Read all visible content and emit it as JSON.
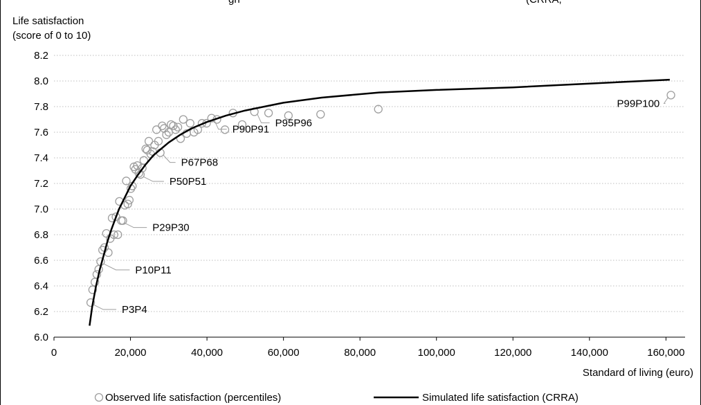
{
  "chart_data": {
    "type": "scatter",
    "title": "",
    "top_caption": "gh",
    "top_caption_right": "(CRRA,",
    "ylabel": "Life satisfaction",
    "ylabel_sub": "(score of 0 to 10)",
    "xlabel": "Standard of living (euro)",
    "xlim": [
      0,
      165000
    ],
    "ylim": [
      6.0,
      8.2
    ],
    "x_ticks": [
      0,
      20000,
      40000,
      60000,
      80000,
      100000,
      120000,
      140000,
      160000
    ],
    "x_tick_labels": [
      "0",
      "20,000",
      "40,000",
      "60,000",
      "80,000",
      "100,000",
      "120,000",
      "140,000",
      "160,000"
    ],
    "y_ticks": [
      6.0,
      6.2,
      6.4,
      6.6,
      6.8,
      7.0,
      7.2,
      7.4,
      7.6,
      7.8,
      8.0,
      8.2
    ],
    "y_tick_labels": [
      "6.0",
      "6.2",
      "6.4",
      "6.6",
      "6.8",
      "7.0",
      "7.2",
      "7.4",
      "7.6",
      "7.8",
      "8.0",
      "8.2"
    ],
    "grid": "horizontal dotted",
    "legend_position": "bottom",
    "series": [
      {
        "name": "Observed life satisfaction (percentiles)",
        "marker": "open-circle",
        "color": "#9e9e9e",
        "points": [
          [
            9600,
            6.27
          ],
          [
            10100,
            6.37
          ],
          [
            10700,
            6.43
          ],
          [
            11200,
            6.49
          ],
          [
            11700,
            6.53
          ],
          [
            12200,
            6.59
          ],
          [
            12700,
            6.68
          ],
          [
            13200,
            6.7
          ],
          [
            13700,
            6.81
          ],
          [
            14200,
            6.66
          ],
          [
            14700,
            6.77
          ],
          [
            15200,
            6.93
          ],
          [
            15700,
            6.8
          ],
          [
            16200,
            6.94
          ],
          [
            16700,
            6.8
          ],
          [
            17100,
            7.06
          ],
          [
            17600,
            6.91
          ],
          [
            18000,
            6.91
          ],
          [
            18500,
            7.03
          ],
          [
            18900,
            7.22
          ],
          [
            19300,
            7.04
          ],
          [
            19700,
            7.07
          ],
          [
            20100,
            7.16
          ],
          [
            20500,
            7.18
          ],
          [
            20900,
            7.33
          ],
          [
            21300,
            7.31
          ],
          [
            21800,
            7.34
          ],
          [
            22200,
            7.28
          ],
          [
            22600,
            7.27
          ],
          [
            23100,
            7.32
          ],
          [
            23500,
            7.38
          ],
          [
            24000,
            7.47
          ],
          [
            24400,
            7.46
          ],
          [
            24800,
            7.53
          ],
          [
            25300,
            7.43
          ],
          [
            25800,
            7.45
          ],
          [
            26300,
            7.5
          ],
          [
            26800,
            7.62
          ],
          [
            27300,
            7.53
          ],
          [
            27800,
            7.44
          ],
          [
            28300,
            7.65
          ],
          [
            28800,
            7.63
          ],
          [
            29400,
            7.58
          ],
          [
            30000,
            7.6
          ],
          [
            30600,
            7.66
          ],
          [
            31200,
            7.65
          ],
          [
            31800,
            7.62
          ],
          [
            32400,
            7.64
          ],
          [
            33100,
            7.55
          ],
          [
            33800,
            7.7
          ],
          [
            34700,
            7.59
          ],
          [
            35600,
            7.67
          ],
          [
            36600,
            7.6
          ],
          [
            37600,
            7.62
          ],
          [
            38700,
            7.67
          ],
          [
            39900,
            7.67
          ],
          [
            41200,
            7.71
          ],
          [
            42600,
            7.7
          ],
          [
            44700,
            7.62
          ],
          [
            46800,
            7.75
          ],
          [
            49200,
            7.66
          ],
          [
            52400,
            7.76
          ],
          [
            56100,
            7.75
          ],
          [
            61300,
            7.73
          ],
          [
            69700,
            7.74
          ],
          [
            84800,
            7.78
          ],
          [
            161300,
            7.89
          ]
        ]
      },
      {
        "name": "Simulated life satisfaction (CRRA)",
        "marker": "line",
        "color": "#000000",
        "points": [
          [
            9300,
            6.09
          ],
          [
            10000,
            6.24
          ],
          [
            11000,
            6.4
          ],
          [
            12000,
            6.53
          ],
          [
            13000,
            6.64
          ],
          [
            14000,
            6.75
          ],
          [
            15000,
            6.84
          ],
          [
            16000,
            6.92
          ],
          [
            17000,
            7.0
          ],
          [
            18000,
            7.06
          ],
          [
            19000,
            7.12
          ],
          [
            20000,
            7.18
          ],
          [
            22000,
            7.27
          ],
          [
            24000,
            7.35
          ],
          [
            26000,
            7.42
          ],
          [
            28000,
            7.47
          ],
          [
            30000,
            7.52
          ],
          [
            33000,
            7.58
          ],
          [
            36000,
            7.63
          ],
          [
            40000,
            7.68
          ],
          [
            45000,
            7.73
          ],
          [
            50000,
            7.77
          ],
          [
            55000,
            7.8
          ],
          [
            60000,
            7.83
          ],
          [
            70000,
            7.87
          ],
          [
            85000,
            7.91
          ],
          [
            100000,
            7.93
          ],
          [
            120000,
            7.95
          ],
          [
            140000,
            7.98
          ],
          [
            161000,
            8.01
          ]
        ]
      }
    ],
    "annotations": [
      {
        "label": "P3P4",
        "x": 9600,
        "y": 6.27
      },
      {
        "label": "P10P11",
        "x": 12200,
        "y": 6.59
      },
      {
        "label": "P29P30",
        "x": 17600,
        "y": 6.91
      },
      {
        "label": "P50P51",
        "x": 22600,
        "y": 7.27
      },
      {
        "label": "P67P68",
        "x": 27800,
        "y": 7.44
      },
      {
        "label": "P90P91",
        "x": 41200,
        "y": 7.71
      },
      {
        "label": "P95P96",
        "x": 52400,
        "y": 7.76
      },
      {
        "label": "P99P100",
        "x": 161300,
        "y": 7.89
      }
    ]
  }
}
